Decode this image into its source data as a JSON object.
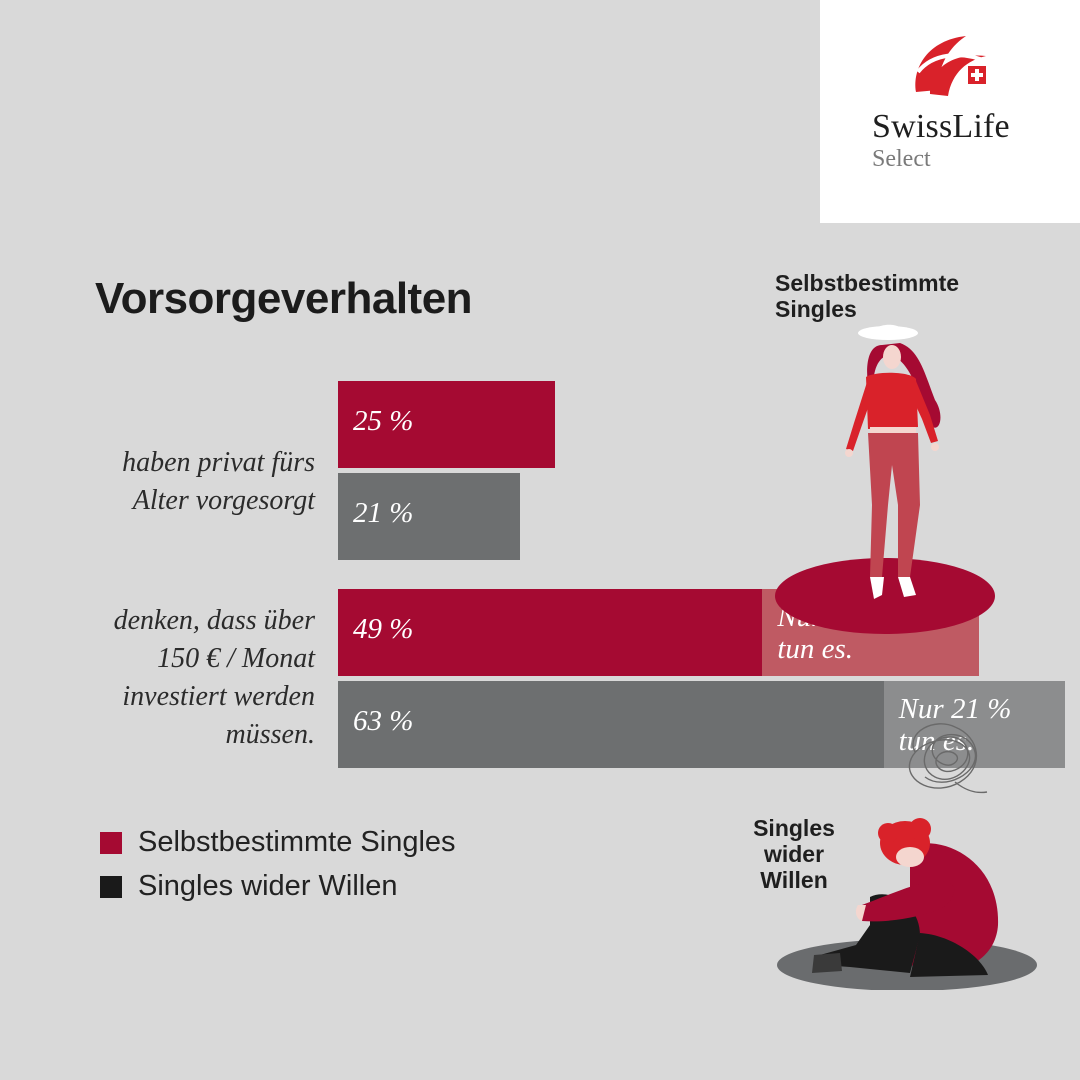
{
  "brand": {
    "name": "SwissLife",
    "sub": "Select"
  },
  "title": "Vorsorgeverhalten",
  "colors": {
    "self": "#a50a32",
    "self_light": "#bf5a63",
    "unwilling": "#6d6f70",
    "unwilling_light": "#8c8d8e",
    "legend_unwilling": "#1a1a1a"
  },
  "legend": [
    {
      "label": "Selbstbestimmte Singles",
      "color": "#a50a32"
    },
    {
      "label": "Singles wider Willen",
      "color": "#1a1a1a"
    }
  ],
  "groups": {
    "self_label": "Selbstbestimmte\nSingles",
    "unwilling_label": "Singles\nwider\nWillen"
  },
  "chart_data": {
    "type": "bar",
    "orientation": "horizontal",
    "title": "Vorsorgeverhalten",
    "categories": [
      "haben privat fürs Alter vorgesorgt",
      "denken, dass über 150 € / Monat investiert werden müssen."
    ],
    "category_labels": [
      "haben privat fürs\nAlter vorgesorgt",
      "denken, dass über\n150 € / Monat\ninvestiert werden\nmüssen."
    ],
    "series": [
      {
        "name": "Selbstbestimmte Singles",
        "values": [
          25,
          49
        ],
        "labels": [
          "25 %",
          "49 %"
        ]
      },
      {
        "name": "Singles wider Willen",
        "values": [
          21,
          63
        ],
        "labels": [
          "21 %",
          "63 %"
        ]
      }
    ],
    "annotations": [
      {
        "category": 1,
        "series": 0,
        "value": 25,
        "text": "Nur 25 %\ntun es."
      },
      {
        "category": 1,
        "series": 1,
        "value": 21,
        "text": "Nur 21 %\ntun es."
      }
    ],
    "unit": "%",
    "legend_position": "bottom-left"
  }
}
